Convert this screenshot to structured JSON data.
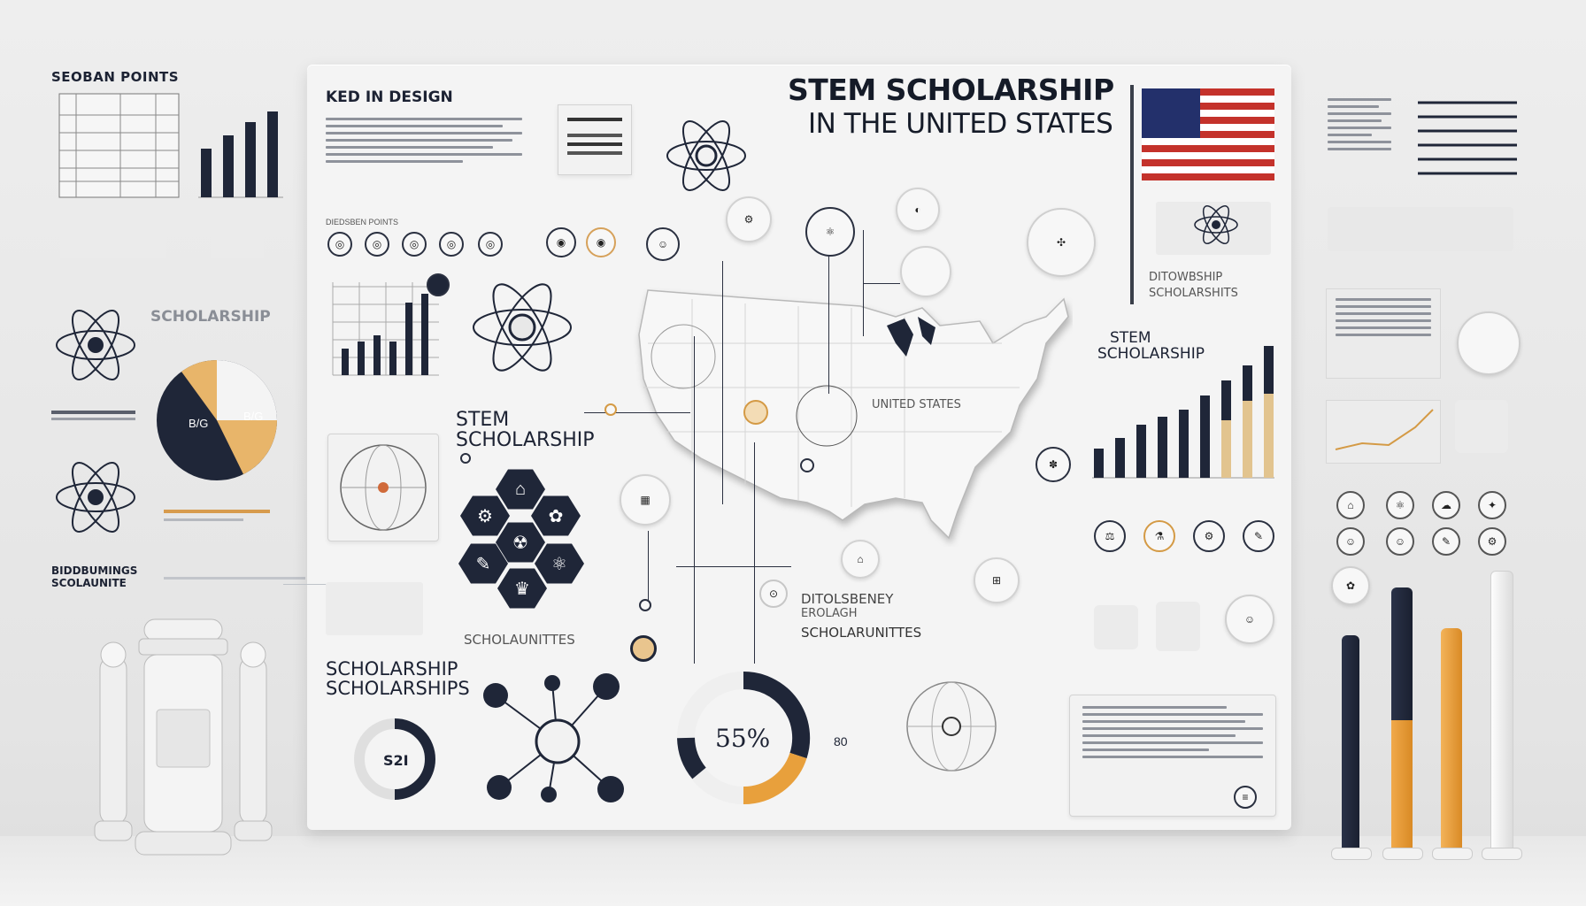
{
  "board": {
    "title_line1": "STEM SCHOLARSHIP",
    "title_line2": "IN THE UNITED STATES",
    "key_design": "KED IN DESIGN",
    "stem_scholarship": "STEM",
    "stem_scholarship_2": "SCHOLARSHIP",
    "united_states": "UNITED STATES",
    "dist_scholarships_1": "DITOLSBENEY",
    "dist_scholarships_2": "EROLAGH",
    "dist_scholarships_3": "SCHOLARUNITTES",
    "scholarship_big_1": "SCHOLARSHIP",
    "scholarship_big_2": "SCHOLARSHIPS",
    "scholaunites": "SCHOLAUNITTES",
    "right_label_1": "DITOWBSHIP",
    "right_label_2": "SCHOLARSHITS",
    "right_stem_1": "STEM",
    "right_stem_2": "SCHOLARSHIP",
    "donut_percent": "55%",
    "mini_donut_label": "S2I",
    "mini_number": "80",
    "points_label": "DIEDSBEN POINTS"
  },
  "left": {
    "header": "SEOBAN POINTS",
    "scholarship_label": "SCHOLARSHIP",
    "bottom_label_1": "BIDDBUMINGS",
    "bottom_label_2": "SCOLAUNITE",
    "pie_label_1": "B/G",
    "pie_label_2": "B/G"
  },
  "colors": {
    "navy": "#1f2638",
    "orange": "#e8a03c",
    "tan": "#e2c48f",
    "flag_red": "#c4322b",
    "flag_blue": "#23306b"
  },
  "icons": [
    "atom-icon",
    "us-map-icon",
    "flag-icon",
    "robot-icon",
    "pie-chart-icon",
    "donut-chart-icon",
    "bar-chart-icon",
    "hexagon-cluster-icon"
  ]
}
